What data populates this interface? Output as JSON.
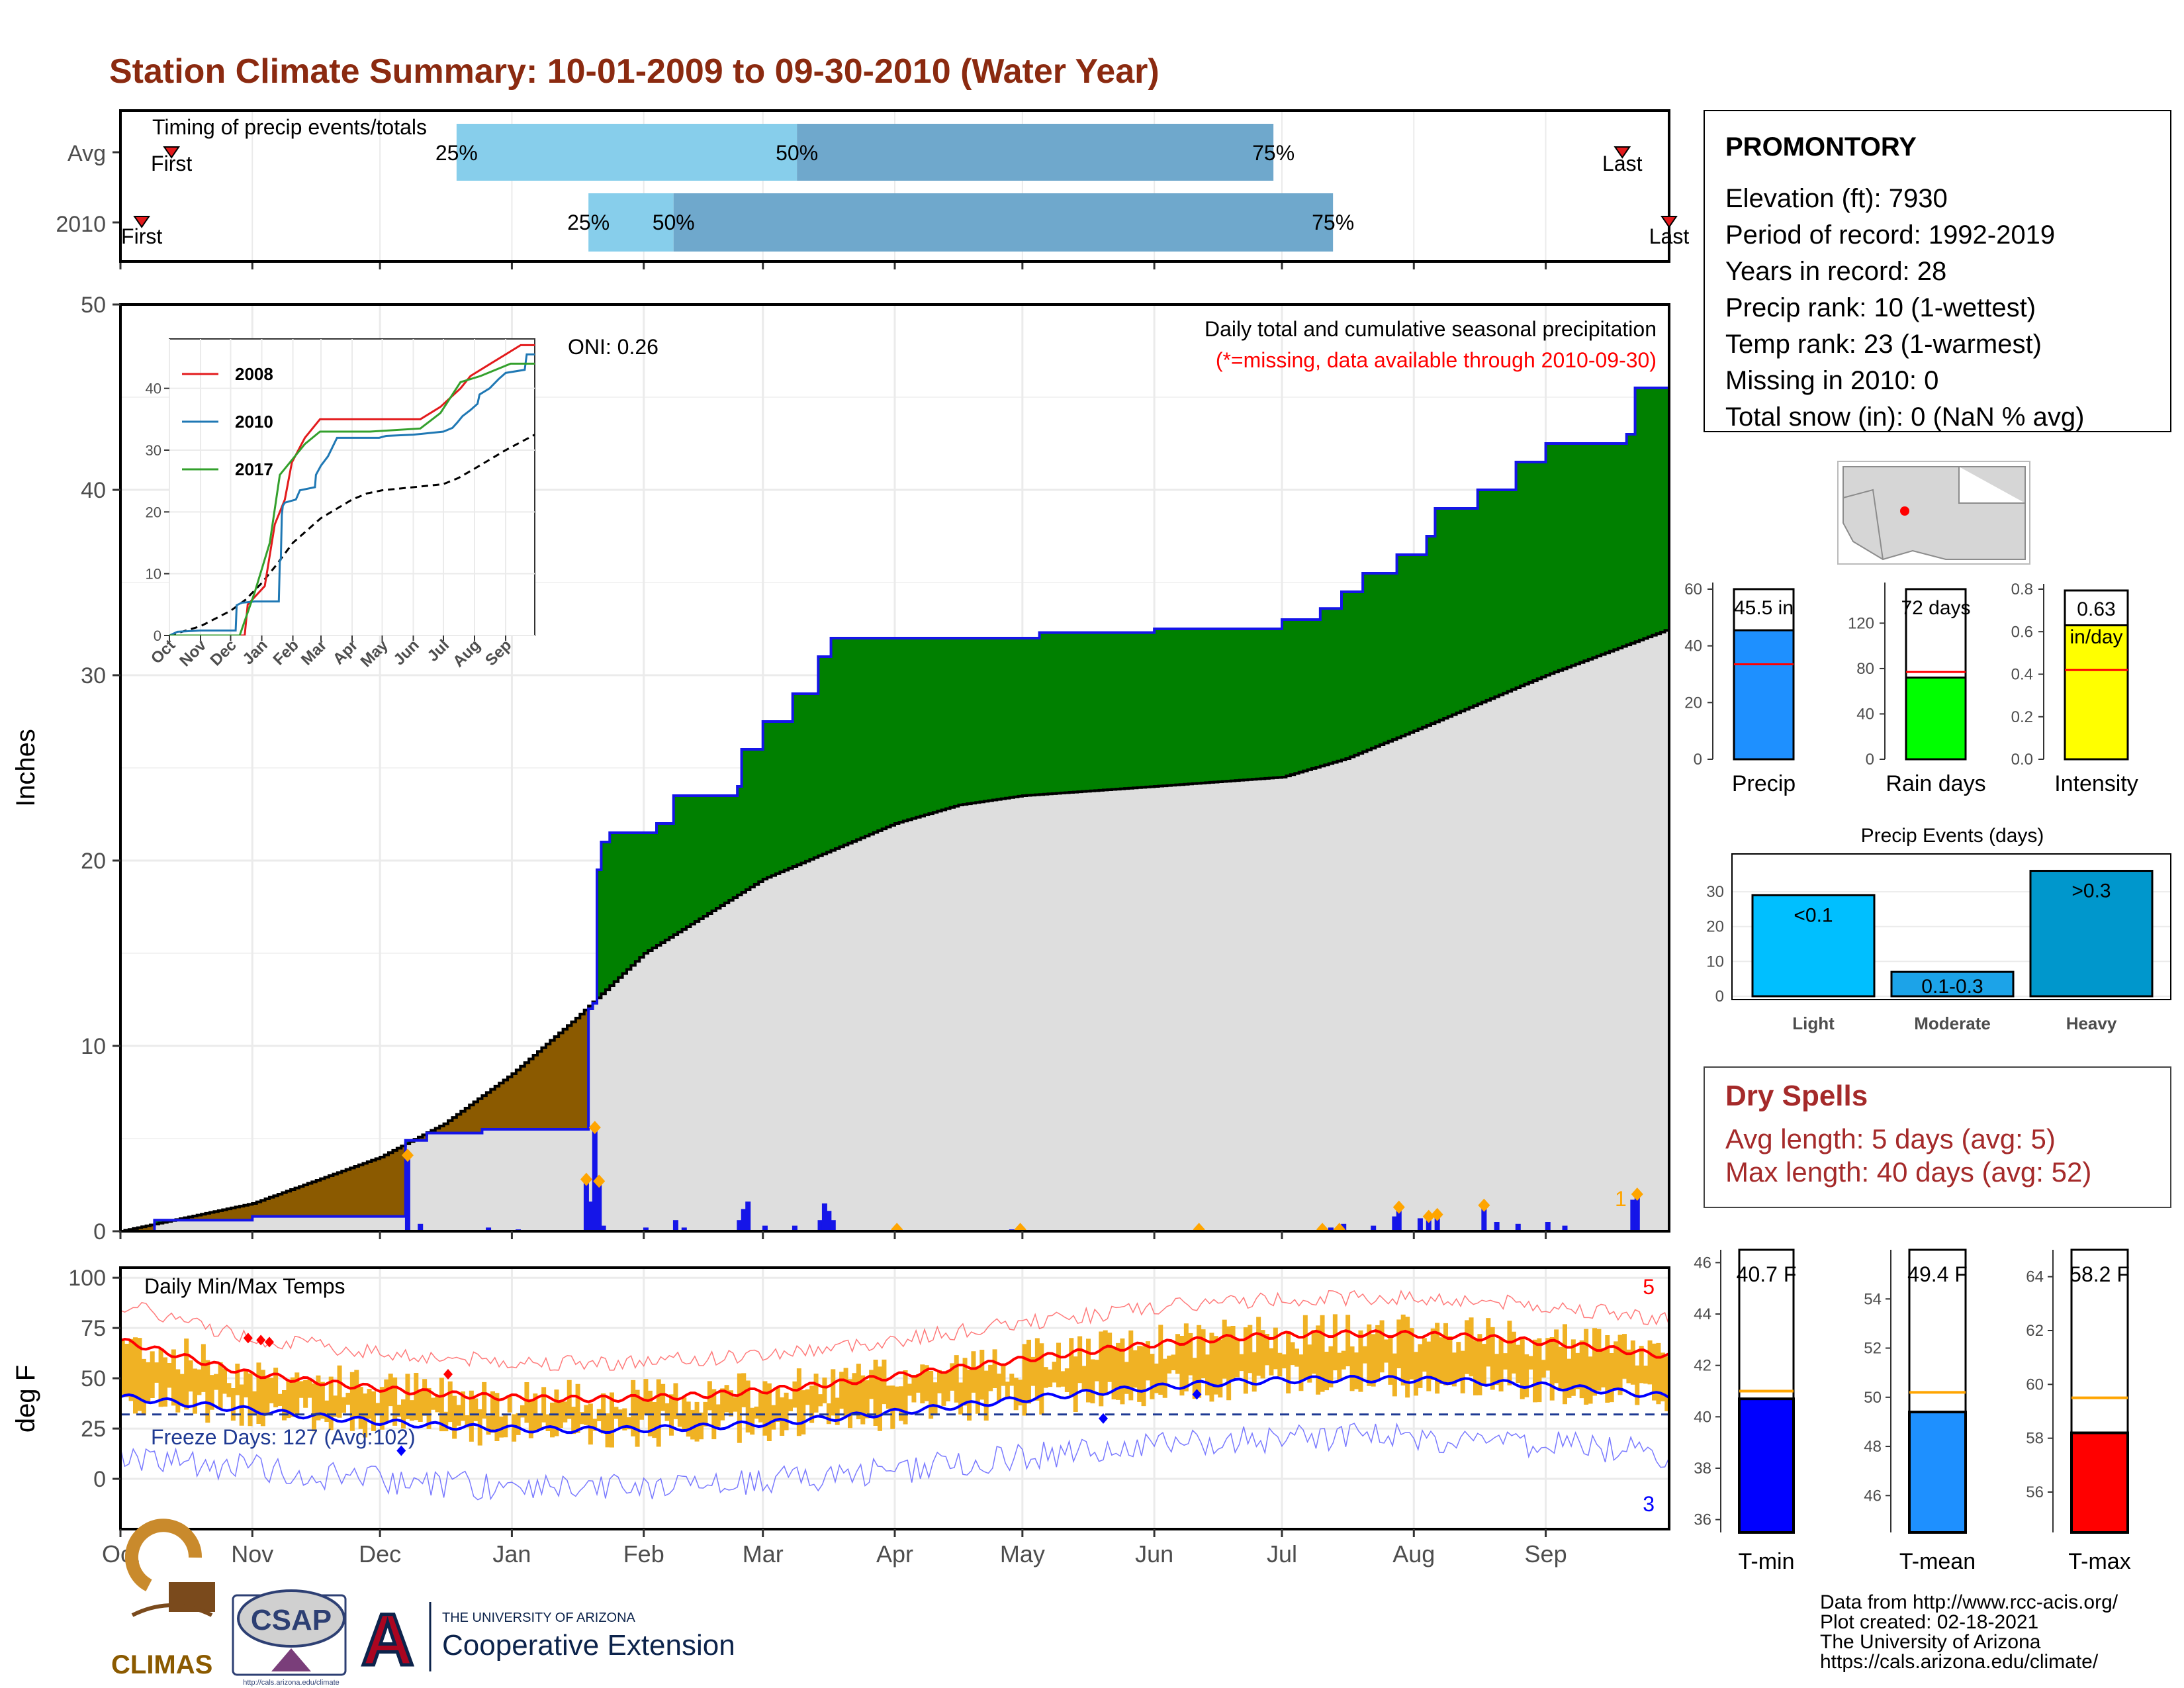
{
  "title": "Station Climate Summary: 10-01-2009 to 09-30-2010 (Water Year)",
  "colors": {
    "title": "#8b2a10",
    "cum_fill": "#008000",
    "deficit_fill": "#8b5a00",
    "avg_fill": "#dedede",
    "line_blue": "#1515e8",
    "diamond": "#ffa500",
    "dry": "#a52a2a"
  },
  "timing": {
    "label": "Timing of precip events/totals",
    "rows": [
      {
        "name": "Avg",
        "first": "First",
        "last": "Last",
        "p25": "25%",
        "p50": "50%",
        "p75": "75%",
        "first_date": "2009-10-13",
        "p25_date": "2009-12-19",
        "p50_date": "2010-03-09",
        "p75_date": "2010-06-29",
        "last_date": "2010-09-19"
      },
      {
        "name": "2010",
        "first": "First",
        "last": "Last",
        "p25": "25%",
        "p50": "50%",
        "p75": "75%",
        "first_date": "2009-10-06",
        "p25_date": "2010-01-19",
        "p50_date": "2010-02-08",
        "p75_date": "2010-07-13",
        "last_date": "2010-09-30"
      }
    ]
  },
  "precip": {
    "ylabel": "Inches",
    "subtitle1": "Daily total and cumulative seasonal precipitation",
    "subtitle2": "(*=missing, data available through 2010-09-30)",
    "oni": "ONI: 0.26",
    "yticks": [
      "0",
      "10",
      "20",
      "30",
      "40",
      "50"
    ],
    "corner_label": "1",
    "cum_points": [
      [
        "2009-10-01",
        0
      ],
      [
        "2009-10-09",
        0.6
      ],
      [
        "2009-11-01",
        0.8
      ],
      [
        "2009-12-06",
        0.8
      ],
      [
        "2009-12-07",
        4.9
      ],
      [
        "2009-12-12",
        5.3
      ],
      [
        "2009-12-25",
        5.5
      ],
      [
        "2010-01-18",
        5.5
      ],
      [
        "2010-01-19",
        12.0
      ],
      [
        "2010-01-20",
        12.3
      ],
      [
        "2010-01-21",
        19.5
      ],
      [
        "2010-01-22",
        21.0
      ],
      [
        "2010-01-24",
        21.5
      ],
      [
        "2010-02-04",
        22.0
      ],
      [
        "2010-02-08",
        23.5
      ],
      [
        "2010-02-23",
        24.0
      ],
      [
        "2010-02-24",
        26.0
      ],
      [
        "2010-03-01",
        27.5
      ],
      [
        "2010-03-08",
        29.0
      ],
      [
        "2010-03-14",
        31.0
      ],
      [
        "2010-03-17",
        32.0
      ],
      [
        "2010-04-28",
        32.0
      ],
      [
        "2010-05-05",
        32.3
      ],
      [
        "2010-06-01",
        32.5
      ],
      [
        "2010-07-01",
        33.0
      ],
      [
        "2010-07-10",
        33.6
      ],
      [
        "2010-07-15",
        34.5
      ],
      [
        "2010-07-20",
        35.5
      ],
      [
        "2010-07-28",
        36.5
      ],
      [
        "2010-08-04",
        37.5
      ],
      [
        "2010-08-06",
        39.0
      ],
      [
        "2010-08-16",
        40.0
      ],
      [
        "2010-08-25",
        41.5
      ],
      [
        "2010-09-01",
        42.5
      ],
      [
        "2010-09-20",
        43.0
      ],
      [
        "2010-09-22",
        45.5
      ],
      [
        "2010-09-30",
        45.5
      ]
    ],
    "avg_points": [
      [
        "2009-10-01",
        0
      ],
      [
        "2009-11-01",
        1.5
      ],
      [
        "2009-12-01",
        4.0
      ],
      [
        "2009-12-16",
        5.8
      ],
      [
        "2010-01-01",
        8.5
      ],
      [
        "2010-01-16",
        11.5
      ],
      [
        "2010-02-01",
        15.0
      ],
      [
        "2010-03-01",
        19.0
      ],
      [
        "2010-04-01",
        22.0
      ],
      [
        "2010-04-16",
        23.0
      ],
      [
        "2010-05-01",
        23.5
      ],
      [
        "2010-06-01",
        24.0
      ],
      [
        "2010-07-01",
        24.5
      ],
      [
        "2010-07-16",
        25.5
      ],
      [
        "2010-08-01",
        27.0
      ],
      [
        "2010-09-01",
        30.0
      ],
      [
        "2010-09-30",
        32.5
      ]
    ],
    "daily": [
      [
        "2009-12-07",
        4.1
      ],
      [
        "2009-12-10",
        0.4
      ],
      [
        "2009-12-26",
        0.2
      ],
      [
        "2010-01-02",
        0.1
      ],
      [
        "2010-01-18",
        2.8
      ],
      [
        "2010-01-19",
        1.6
      ],
      [
        "2010-01-20",
        5.6
      ],
      [
        "2010-01-21",
        2.7
      ],
      [
        "2010-01-22",
        0.3
      ],
      [
        "2010-02-01",
        0.2
      ],
      [
        "2010-02-08",
        0.6
      ],
      [
        "2010-02-10",
        0.2
      ],
      [
        "2010-02-23",
        0.6
      ],
      [
        "2010-02-24",
        1.2
      ],
      [
        "2010-02-25",
        1.6
      ],
      [
        "2010-03-01",
        0.3
      ],
      [
        "2010-03-08",
        0.3
      ],
      [
        "2010-03-14",
        0.6
      ],
      [
        "2010-03-15",
        1.5
      ],
      [
        "2010-03-16",
        1.1
      ],
      [
        "2010-03-17",
        0.6
      ],
      [
        "2010-04-28",
        0.1
      ],
      [
        "2010-07-12",
        0.2
      ],
      [
        "2010-07-15",
        0.4
      ],
      [
        "2010-07-22",
        0.3
      ],
      [
        "2010-07-27",
        0.8
      ],
      [
        "2010-07-28",
        1.3
      ],
      [
        "2010-08-02",
        0.7
      ],
      [
        "2010-08-04",
        0.8
      ],
      [
        "2010-08-06",
        0.9
      ],
      [
        "2010-08-17",
        1.4
      ],
      [
        "2010-08-20",
        0.5
      ],
      [
        "2010-08-25",
        0.4
      ],
      [
        "2010-09-01",
        0.5
      ],
      [
        "2010-09-05",
        0.3
      ],
      [
        "2010-09-21",
        1.7
      ],
      [
        "2010-09-22",
        2.0
      ]
    ],
    "dates_diamond": [
      "2009-12-07",
      "2010-01-18",
      "2010-01-20",
      "2010-01-21",
      "2010-04-01",
      "2010-04-30",
      "2010-06-11",
      "2010-07-10",
      "2010-07-14",
      "2010-07-28",
      "2010-08-04",
      "2010-08-06",
      "2010-08-17",
      "2010-09-22"
    ]
  },
  "inset": {
    "legend": [
      "2008",
      "2010",
      "2017"
    ],
    "legend_colors": [
      "#e31a1c",
      "#1f78b4",
      "#33a02c"
    ],
    "yticks": [
      "0",
      "10",
      "20",
      "30",
      "40"
    ],
    "xticks": [
      "Oct",
      "Nov",
      "Dec",
      "Jan",
      "Feb",
      "Mar",
      "Apr",
      "May",
      "Jun",
      "Jul",
      "Aug",
      "Sep"
    ]
  },
  "months": [
    "Oct",
    "Nov",
    "Dec",
    "Jan",
    "Feb",
    "Mar",
    "Apr",
    "May",
    "Jun",
    "Jul",
    "Aug",
    "Sep"
  ],
  "temp": {
    "ylabel": "deg F",
    "label": "Daily Min/Max Temps",
    "freeze": "Freeze Days: 127 (Avg:102)",
    "max_records": "5",
    "min_records": "3",
    "yticks": [
      "0",
      "25",
      "50",
      "75",
      "100"
    ]
  },
  "station": {
    "name": "PROMONTORY",
    "lines": [
      "Elevation (ft): 7930",
      "Period of record: 1992-2019",
      "Years in record: 28",
      "Precip rank: 10 (1-wettest)",
      "Temp rank: 23 (1-warmest)",
      "Missing in 2010: 0",
      "Total snow (in): 0 (NaN % avg)"
    ]
  },
  "mini_bars": [
    {
      "label": "Precip",
      "value_label": "45.5 in",
      "value": 45.5,
      "avg": 33.5,
      "max": 60,
      "ticks": [
        "0",
        "20",
        "40",
        "60"
      ],
      "color": "#1e90ff"
    },
    {
      "label": "Rain days",
      "value_label": "72 days",
      "value": 72,
      "avg": 77,
      "max": 150,
      "ticks": [
        "0",
        "40",
        "80",
        "120"
      ],
      "color": "#00ff00"
    },
    {
      "label": "Intensity",
      "value_label": "0.63",
      "value_label2": "in/day",
      "value": 0.63,
      "avg": 0.42,
      "max": 0.8,
      "ticks": [
        "0.0",
        "0.2",
        "0.4",
        "0.6",
        "0.8"
      ],
      "color": "#ffff00"
    }
  ],
  "events": {
    "title": "Precip Events (days)",
    "bars": [
      {
        "name": "Light",
        "tag": "<0.1",
        "value": 29
      },
      {
        "name": "Moderate",
        "tag": "0.1-0.3",
        "value": 7
      },
      {
        "name": "Heavy",
        "tag": ">0.3",
        "value": 36
      }
    ],
    "ticks": [
      "0",
      "10",
      "20",
      "30"
    ]
  },
  "dry": {
    "title": "Dry Spells",
    "line1": "Avg length: 5 days (avg: 5)",
    "line2": "Max length: 40 days (avg: 52)"
  },
  "temp_bars": [
    {
      "label": "T-min",
      "value_label": "40.7 F",
      "value": 40.7,
      "avg": 41.0,
      "min": 35.5,
      "max": 46.5,
      "ticks": [
        "36",
        "38",
        "40",
        "42",
        "44",
        "46"
      ],
      "color": "#0000ff"
    },
    {
      "label": "T-mean",
      "value_label": "49.4 F",
      "value": 49.4,
      "avg": 50.2,
      "min": 44.5,
      "max": 56.0,
      "ticks": [
        "46",
        "48",
        "50",
        "52",
        "54"
      ],
      "color": "#1e90ff"
    },
    {
      "label": "T-max",
      "value_label": "58.2 F",
      "value": 58.2,
      "avg": 59.5,
      "min": 54.5,
      "max": 65.0,
      "ticks": [
        "56",
        "58",
        "60",
        "62",
        "64"
      ],
      "color": "#ff0000"
    }
  ],
  "credits": [
    "Data from http://www.rcc-acis.org/",
    "Plot created: 02-18-2021",
    "The University of Arizona",
    "https://cals.arizona.edu/climate/"
  ],
  "logos": {
    "climas": "CLIMAS",
    "csap": "CSAP",
    "csap_url": "http://cals.arizona.edu/climate",
    "ua_small": "THE UNIVERSITY OF ARIZONA",
    "ua_big": "Cooperative Extension"
  }
}
